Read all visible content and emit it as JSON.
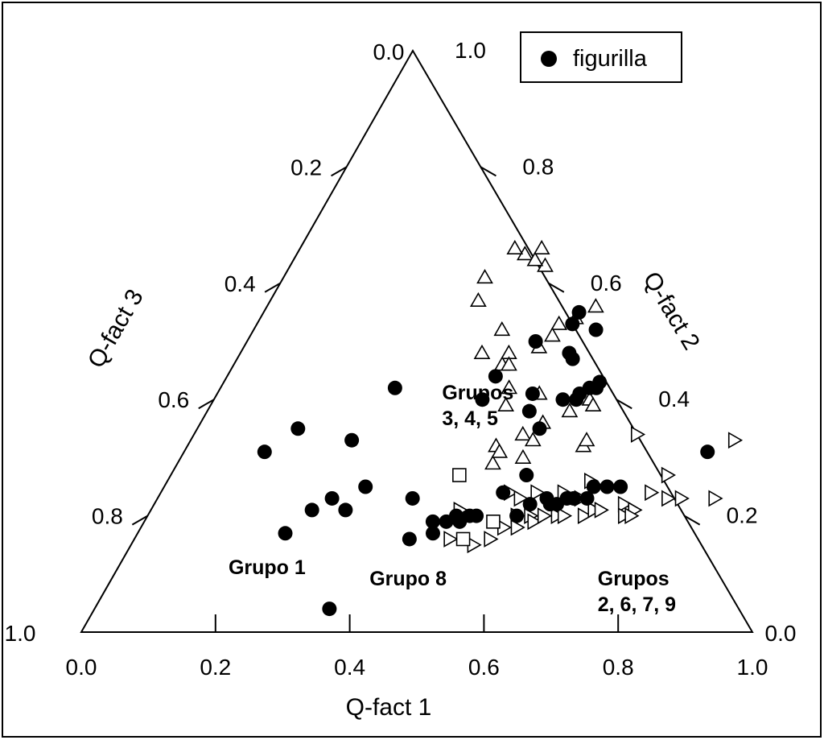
{
  "chart_data": {
    "type": "scatter",
    "subtype": "ternary",
    "axes": {
      "a": {
        "label": "Q-fact 1",
        "ticks": [
          "0.0",
          "0.2",
          "0.4",
          "0.6",
          "0.8",
          "1.0"
        ]
      },
      "b": {
        "label": "Q-fact 2",
        "ticks": [
          "0.2",
          "0.4",
          "0.6",
          "0.8",
          "1.0"
        ],
        "corner_tick": "0.0"
      },
      "c": {
        "label": "Q-fact 3",
        "ticks": [
          "0.0",
          "0.2",
          "0.4",
          "0.6",
          "0.8",
          "1.0"
        ]
      },
      "range": [
        0,
        1
      ]
    },
    "legend": {
      "position": "top-right",
      "entries": [
        "figurilla"
      ]
    },
    "annotations": [
      {
        "text": [
          "Grupos",
          "3, 4, 5"
        ],
        "a": 0.34,
        "b": 0.4
      },
      {
        "text": [
          "Grupo 1"
        ],
        "a": 0.17,
        "b": 0.1
      },
      {
        "text": [
          "Grupo 8"
        ],
        "a": 0.39,
        "b": 0.08
      },
      {
        "text": [
          "Grupos",
          "2, 6, 7, 9"
        ],
        "a": 0.73,
        "b": 0.08
      }
    ],
    "series": [
      {
        "name": "figurilla",
        "marker": "filled-circle",
        "points": [
          {
            "a": 0.15,
            "b": 0.35
          },
          {
            "a": 0.26,
            "b": 0.42
          },
          {
            "a": 0.12,
            "b": 0.31
          },
          {
            "a": 0.24,
            "b": 0.33
          },
          {
            "a": 0.26,
            "b": 0.23
          },
          {
            "a": 0.3,
            "b": 0.25
          },
          {
            "a": 0.24,
            "b": 0.21
          },
          {
            "a": 0.29,
            "b": 0.21
          },
          {
            "a": 0.22,
            "b": 0.17
          },
          {
            "a": 0.38,
            "b": 0.23
          },
          {
            "a": 0.35,
            "b": 0.04
          },
          {
            "a": 0.41,
            "b": 0.16
          },
          {
            "a": 0.43,
            "b": 0.19
          },
          {
            "a": 0.44,
            "b": 0.17
          },
          {
            "a": 0.45,
            "b": 0.19
          },
          {
            "a": 0.46,
            "b": 0.2
          },
          {
            "a": 0.47,
            "b": 0.19
          },
          {
            "a": 0.48,
            "b": 0.2
          },
          {
            "a": 0.49,
            "b": 0.2
          },
          {
            "a": 0.51,
            "b": 0.24
          },
          {
            "a": 0.55,
            "b": 0.2
          },
          {
            "a": 0.56,
            "b": 0.22
          },
          {
            "a": 0.58,
            "b": 0.23
          },
          {
            "a": 0.59,
            "b": 0.22
          },
          {
            "a": 0.6,
            "b": 0.22
          },
          {
            "a": 0.61,
            "b": 0.23
          },
          {
            "a": 0.62,
            "b": 0.23
          },
          {
            "a": 0.64,
            "b": 0.23
          },
          {
            "a": 0.64,
            "b": 0.25
          },
          {
            "a": 0.66,
            "b": 0.25
          },
          {
            "a": 0.68,
            "b": 0.25
          },
          {
            "a": 0.78,
            "b": 0.31
          },
          {
            "a": 0.43,
            "b": 0.5
          },
          {
            "a": 0.4,
            "b": 0.44
          },
          {
            "a": 0.4,
            "b": 0.4
          },
          {
            "a": 0.47,
            "b": 0.55
          },
          {
            "a": 0.47,
            "b": 0.53
          },
          {
            "a": 0.51,
            "b": 0.52
          },
          {
            "a": 0.49,
            "b": 0.48
          },
          {
            "a": 0.5,
            "b": 0.47
          },
          {
            "a": 0.47,
            "b": 0.41
          },
          {
            "a": 0.52,
            "b": 0.4
          },
          {
            "a": 0.54,
            "b": 0.41
          },
          {
            "a": 0.55,
            "b": 0.42
          },
          {
            "a": 0.56,
            "b": 0.42
          },
          {
            "a": 0.48,
            "b": 0.38
          },
          {
            "a": 0.51,
            "b": 0.35
          },
          {
            "a": 0.54,
            "b": 0.4
          },
          {
            "a": 0.56,
            "b": 0.43
          },
          {
            "a": 0.53,
            "b": 0.27
          }
        ]
      },
      {
        "name": "",
        "marker": "open-triangle-up",
        "points": [
          {
            "a": 0.3,
            "b": 0.61
          },
          {
            "a": 0.34,
            "b": 0.65
          },
          {
            "a": 0.31,
            "b": 0.57
          },
          {
            "a": 0.32,
            "b": 0.66
          },
          {
            "a": 0.38,
            "b": 0.63
          },
          {
            "a": 0.36,
            "b": 0.66
          },
          {
            "a": 0.36,
            "b": 0.64
          },
          {
            "a": 0.37,
            "b": 0.52
          },
          {
            "a": 0.36,
            "b": 0.48
          },
          {
            "a": 0.4,
            "b": 0.48
          },
          {
            "a": 0.4,
            "b": 0.46
          },
          {
            "a": 0.41,
            "b": 0.46
          },
          {
            "a": 0.44,
            "b": 0.49
          },
          {
            "a": 0.45,
            "b": 0.53
          },
          {
            "a": 0.49,
            "b": 0.56
          },
          {
            "a": 0.47,
            "b": 0.54
          },
          {
            "a": 0.48,
            "b": 0.41
          },
          {
            "a": 0.43,
            "b": 0.42
          },
          {
            "a": 0.44,
            "b": 0.39
          },
          {
            "a": 0.46,
            "b": 0.32
          },
          {
            "a": 0.49,
            "b": 0.34
          },
          {
            "a": 0.47,
            "b": 0.29
          },
          {
            "a": 0.47,
            "b": 0.31
          },
          {
            "a": 0.51,
            "b": 0.36
          },
          {
            "a": 0.51,
            "b": 0.33
          },
          {
            "a": 0.51,
            "b": 0.3
          },
          {
            "a": 0.56,
            "b": 0.4
          },
          {
            "a": 0.57,
            "b": 0.39
          },
          {
            "a": 0.59,
            "b": 0.32
          },
          {
            "a": 0.59,
            "b": 0.33
          },
          {
            "a": 0.45,
            "b": 0.51
          },
          {
            "a": 0.54,
            "b": 0.38
          }
        ]
      },
      {
        "name": "",
        "marker": "open-triangle-right",
        "points": [
          {
            "a": 0.46,
            "b": 0.21
          },
          {
            "a": 0.47,
            "b": 0.16
          },
          {
            "a": 0.51,
            "b": 0.15
          },
          {
            "a": 0.53,
            "b": 0.16
          },
          {
            "a": 0.54,
            "b": 0.18
          },
          {
            "a": 0.55,
            "b": 0.2
          },
          {
            "a": 0.56,
            "b": 0.18
          },
          {
            "a": 0.57,
            "b": 0.2
          },
          {
            "a": 0.58,
            "b": 0.19
          },
          {
            "a": 0.59,
            "b": 0.2
          },
          {
            "a": 0.6,
            "b": 0.24
          },
          {
            "a": 0.61,
            "b": 0.2
          },
          {
            "a": 0.62,
            "b": 0.2
          },
          {
            "a": 0.63,
            "b": 0.26
          },
          {
            "a": 0.65,
            "b": 0.2
          },
          {
            "a": 0.66,
            "b": 0.21
          },
          {
            "a": 0.67,
            "b": 0.21
          },
          {
            "a": 0.7,
            "b": 0.22
          },
          {
            "a": 0.71,
            "b": 0.2
          },
          {
            "a": 0.72,
            "b": 0.21
          },
          {
            "a": 0.73,
            "b": 0.24
          },
          {
            "a": 0.74,
            "b": 0.27
          },
          {
            "a": 0.76,
            "b": 0.23
          },
          {
            "a": 0.78,
            "b": 0.23
          },
          {
            "a": 0.81,
            "b": 0.33
          },
          {
            "a": 0.83,
            "b": 0.23
          },
          {
            "a": 0.72,
            "b": 0.2
          },
          {
            "a": 0.66,
            "b": 0.34
          },
          {
            "a": 0.52,
            "b": 0.24
          },
          {
            "a": 0.54,
            "b": 0.23
          },
          {
            "a": 0.56,
            "b": 0.24
          },
          {
            "a": 0.63,
            "b": 0.23
          }
        ]
      },
      {
        "name": "",
        "marker": "open-square",
        "points": [
          {
            "a": 0.43,
            "b": 0.27
          },
          {
            "a": 0.49,
            "b": 0.16
          },
          {
            "a": 0.52,
            "b": 0.19
          }
        ]
      }
    ]
  }
}
